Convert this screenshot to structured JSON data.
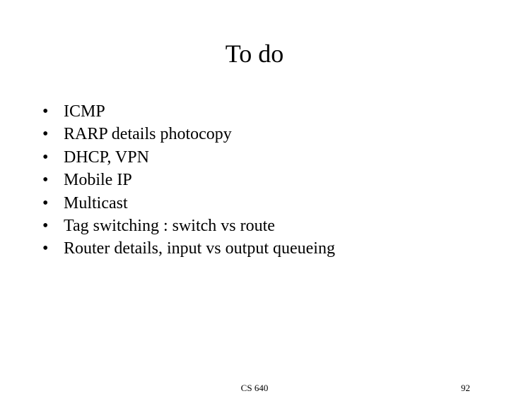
{
  "slide": {
    "title": "To do",
    "bullets": [
      "ICMP",
      "RARP details photocopy",
      "DHCP, VPN",
      "Mobile IP",
      "Multicast",
      "Tag switching : switch vs route",
      "Router details, input vs output queueing"
    ],
    "footer_center": "CS 640",
    "page_number": "92"
  },
  "style": {
    "background_color": "#ffffff",
    "text_color": "#000000",
    "title_fontsize": 36,
    "body_fontsize": 24,
    "footer_fontsize": 13,
    "font_family": "Times New Roman"
  }
}
